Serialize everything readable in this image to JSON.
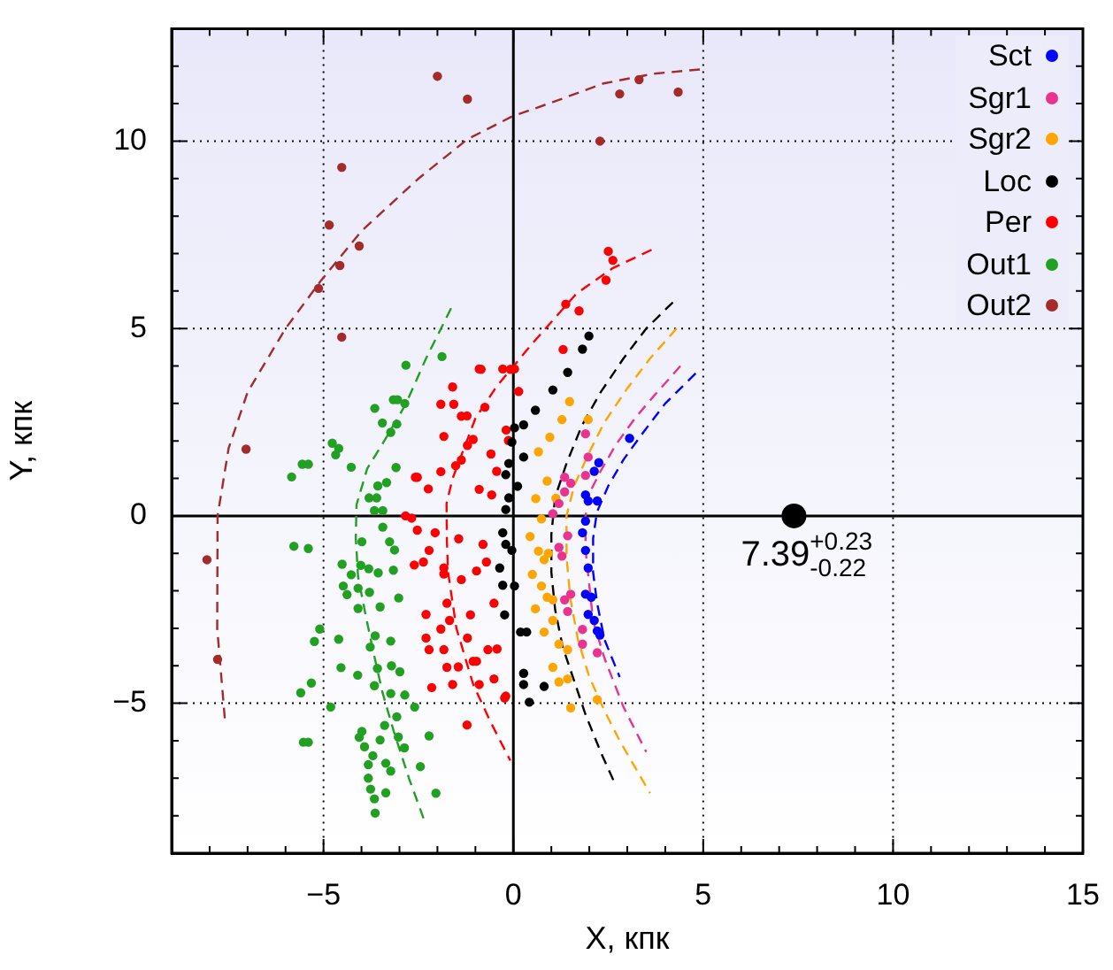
{
  "chart_data": {
    "type": "scatter",
    "xlabel": "X, кпк",
    "ylabel": "Y, кпк",
    "xlim": [
      -9,
      15
    ],
    "ylim": [
      -9,
      13
    ],
    "xticks": [
      {
        "value": -9,
        "label": null
      },
      {
        "value": -8,
        "label": null
      },
      {
        "value": -7,
        "label": null
      },
      {
        "value": -6,
        "label": null
      },
      {
        "value": -5,
        "label": "−5"
      },
      {
        "value": -4,
        "label": null
      },
      {
        "value": -3,
        "label": null
      },
      {
        "value": -2,
        "label": null
      },
      {
        "value": -1,
        "label": null
      },
      0,
      {
        "value": 1,
        "label": null
      },
      {
        "value": 2,
        "label": null
      },
      {
        "value": 3,
        "label": null
      },
      {
        "value": 4,
        "label": null
      },
      5,
      {
        "value": 6,
        "label": null
      },
      {
        "value": 7,
        "label": null
      },
      {
        "value": 8,
        "label": null
      },
      {
        "value": 9,
        "label": null
      },
      10,
      {
        "value": 11,
        "label": null
      },
      {
        "value": 12,
        "label": null
      },
      {
        "value": 13,
        "label": null
      },
      {
        "value": 14,
        "label": null
      },
      15
    ],
    "yticks": [
      {
        "value": -9,
        "label": null
      },
      {
        "value": -8,
        "label": null
      },
      {
        "value": -7,
        "label": null
      },
      {
        "value": -6,
        "label": null
      },
      {
        "value": -5,
        "label": "−5"
      },
      {
        "value": -4,
        "label": null
      },
      {
        "value": -3,
        "label": null
      },
      {
        "value": -2,
        "label": null
      },
      {
        "value": -1,
        "label": null
      },
      0,
      {
        "value": 1,
        "label": null
      },
      {
        "value": 2,
        "label": null
      },
      {
        "value": 3,
        "label": null
      },
      {
        "value": 4,
        "label": null
      },
      5,
      {
        "value": 6,
        "label": null
      },
      {
        "value": 7,
        "label": null
      },
      {
        "value": 8,
        "label": null
      },
      {
        "value": 9,
        "label": null
      },
      10,
      {
        "value": 11,
        "label": null
      },
      {
        "value": 12,
        "label": null
      },
      {
        "value": 13,
        "label": null
      }
    ],
    "grid": true,
    "legend": "top right",
    "marker": "circle",
    "annotations": [
      {
        "text": "7.39$^{+0.23}$$_{-0.22}$",
        "x": 7.39,
        "y": 0
      }
    ],
    "series": [
      {
        "name": "Sct",
        "color": "#0000ff",
        "x": [
          3.06,
          2.25,
          2.13,
          1.9,
          1.97,
          2.21,
          1.9,
          1.82,
          1.9,
          1.97,
          1.9,
          2.05,
          1.97,
          2.13,
          2.28,
          2.21
        ],
        "values": [
          2.07,
          1.42,
          1.19,
          0.56,
          0.4,
          0.4,
          -0.14,
          -0.45,
          -0.92,
          -1.39,
          -2.09,
          -2.17,
          -2.63,
          -2.79,
          -3.18,
          -3.07
        ]
      },
      {
        "name": "Sgr1",
        "color": "#e9348f",
        "x": [
          1.9,
          1.97,
          1.35,
          1.51,
          1.35,
          1.2,
          1.43,
          1.2,
          1.28,
          1.35,
          1.43,
          1.51,
          1.82,
          1.82,
          1.9,
          1.04,
          2.21
        ],
        "values": [
          2.19,
          1.57,
          1.03,
          0.87,
          0.64,
          0.33,
          -0.53,
          -0.84,
          -1.07,
          -2.24,
          -2.55,
          -2.09,
          -3.42,
          -3.03,
          1.08,
          0.06,
          -3.65
        ]
      },
      {
        "name": "Sgr2",
        "color": "#ffa500",
        "x": [
          1.28,
          1.97,
          0.66,
          0.89,
          0.59,
          0.74,
          0.44,
          0.66,
          0.81,
          0.5,
          0.74,
          0.89,
          0.58,
          1.04,
          0.81,
          1.2,
          1.04,
          1.43,
          1.51,
          1.48,
          0.96,
          1.12,
          0.92,
          1.04,
          1.43,
          1.2,
          2.21
        ],
        "values": [
          2.57,
          2.57,
          1.71,
          0.93,
          0.46,
          -0.08,
          -0.55,
          -0.94,
          -1.17,
          -1.56,
          -1.87,
          -2.17,
          -2.48,
          -2.79,
          -3.1,
          -3.42,
          -4.04,
          -4.35,
          -5.12,
          3.05,
          2.1,
          0.47,
          -1.0,
          -2.24,
          -3.57,
          -4.43,
          -4.9
        ]
      },
      {
        "name": "Loc",
        "color": "#000000",
        "x": [
          1.43,
          1.82,
          1.04,
          0.58,
          0.27,
          -0.04,
          0.27,
          -0.2,
          0.11,
          -0.2,
          -0.28,
          -0.04,
          -0.36,
          0.03,
          0.19,
          0.27,
          0.42,
          0.03,
          -0.12,
          -0.12,
          -0.2,
          -0.28,
          -0.23,
          0.27,
          1.99,
          0.35,
          0.81
        ],
        "values": [
          3.83,
          4.45,
          3.36,
          2.82,
          2.43,
          1.97,
          1.57,
          1.1,
          0.79,
          0.17,
          -0.45,
          -0.92,
          -1.39,
          -1.87,
          -3.1,
          -4.2,
          -4.97,
          2.35,
          1.4,
          0.48,
          -0.76,
          -1.85,
          -2.64,
          -4.5,
          4.8,
          -3.1,
          -4.55
        ]
      },
      {
        "name": "Per",
        "color": "#ff0000",
        "x": [
          2.5,
          2.62,
          2.44,
          1.38,
          1.73,
          1.31,
          -0.28,
          0.03,
          0.14,
          -0.19,
          -0.2,
          -0.43,
          -1.91,
          -1.57,
          -1.22,
          -0.9,
          -2.58,
          -2.24,
          -1.91,
          -1.37,
          -1.06,
          -2.84,
          -2.53,
          -2.22,
          -2.61,
          -1.83,
          -1.37,
          -2.3,
          -1.68,
          -2.3,
          -1.83,
          -1.06,
          -2.15,
          -1.45,
          -1.22,
          -0.9,
          -0.85,
          -0.08,
          -1.6,
          -1.37,
          -0.75,
          -1.83,
          -1.21,
          -0.59,
          -2.53,
          -1.52,
          -0.9,
          -2.68,
          -2.06,
          -1.44,
          -2.37,
          -1.83,
          -0.97,
          -1.75,
          -1.13,
          -0.51,
          -1.91,
          -1.21,
          -0.67,
          -2.22,
          -1.75,
          -0.97,
          -0.51,
          -1.6,
          -0.23,
          -0.13,
          -0.44,
          -0.57,
          -0.8,
          -0.71
        ],
        "values": [
          7.06,
          6.82,
          6.29,
          5.65,
          5.47,
          4.44,
          3.92,
          3.92,
          3.32,
          2.29,
          -4.81,
          -3.55,
          2.98,
          2.98,
          2.67,
          3.92,
          1.03,
          0.72,
          1.18,
          1.49,
          2.04,
          0.0,
          -0.38,
          -0.92,
          -1.31,
          -1.39,
          -1.7,
          -2.63,
          -2.79,
          -3.26,
          -3.57,
          -3.88,
          -4.58,
          -4.03,
          -5.58,
          -4.5,
          3.91,
          3.91,
          3.44,
          2.66,
          2.9,
          2.12,
          1.88,
          1.65,
          1.03,
          1.34,
          0.71,
          -0.06,
          -0.45,
          -0.61,
          -1.23,
          -1.55,
          -1.47,
          -2.33,
          -2.64,
          -2.33,
          -3.02,
          -3.26,
          -3.57,
          -3.57,
          -4.04,
          -3.88,
          -4.35,
          -4.5,
          -4.86,
          2.01,
          1.19,
          0.56,
          -0.76,
          -1.23
        ]
      },
      {
        "name": "Out1",
        "color": "#22a022",
        "x": [
          -1.88,
          -2.83,
          -3.16,
          -3.05,
          -2.86,
          -3.65,
          -3.45,
          -3.23,
          -3.07,
          -4.77,
          -4.6,
          -4.68,
          -5.56,
          -5.4,
          -5.84,
          -4.27,
          -3.57,
          -3.34,
          -3.8,
          -3.6,
          -3.66,
          -3.44,
          -3.09,
          -3.44,
          -5.78,
          -5.4,
          -3.26,
          -3.99,
          -4.51,
          -4.02,
          -3.81,
          -4.27,
          -3.56,
          -4.48,
          -4.09,
          -3.79,
          -4.38,
          -3.51,
          -4.09,
          -5.1,
          -5.24,
          -4.6,
          -3.64,
          -3.23,
          -3.77,
          -3.58,
          -3.21,
          -2.99,
          -4.54,
          -4.1,
          -5.6,
          -5.32,
          -4.81,
          -3.66,
          -3.23,
          -2.86,
          -2.6,
          -3.07,
          -3.39,
          -3.99,
          -4.06,
          -3.51,
          -3.03,
          -2.87,
          -2.22,
          -5.53,
          -5.4,
          -3.92,
          -3.7,
          -3.82,
          -3.36,
          -3.23,
          -3.82,
          -3.36,
          -3.76,
          -3.66,
          -3.64,
          -2.45,
          -2.04,
          -3.13,
          -3.16,
          -3.02
        ],
        "values": [
          4.25,
          4.02,
          3.1,
          3.1,
          3.0,
          2.87,
          2.48,
          2.23,
          2.45,
          1.94,
          1.8,
          1.63,
          1.38,
          1.38,
          1.04,
          1.3,
          0.8,
          0.89,
          0.48,
          0.48,
          0.14,
          0.14,
          1.29,
          -0.3,
          -0.81,
          -0.87,
          -0.69,
          -0.69,
          -1.29,
          -1.32,
          -1.41,
          -1.57,
          -1.52,
          -1.87,
          -1.93,
          -2.04,
          -2.1,
          -2.43,
          -2.47,
          -3.02,
          -3.35,
          -3.29,
          -3.2,
          -3.34,
          -3.5,
          -4.07,
          -4.0,
          -4.16,
          -4.05,
          -4.25,
          -4.72,
          -4.46,
          -5.1,
          -4.53,
          -4.74,
          -4.78,
          -5.1,
          -5.36,
          -5.59,
          -5.75,
          -5.91,
          -5.98,
          -5.9,
          -6.19,
          -5.87,
          -6.04,
          -6.04,
          -6.16,
          -6.4,
          -6.64,
          -6.6,
          -6.81,
          -7.0,
          -7.39,
          -7.29,
          -7.55,
          -7.93,
          -6.69,
          -7.4,
          -0.91,
          -1.45,
          -2.19
        ]
      },
      {
        "name": "Out2",
        "color": "#a52a2a",
        "x": [
          -2.0,
          -1.21,
          -4.52,
          -4.85,
          -4.06,
          -4.57,
          -5.13,
          -4.52,
          -7.04,
          -8.07,
          -7.79,
          2.8,
          3.31,
          4.34,
          2.28
        ],
        "values": [
          11.73,
          11.12,
          9.3,
          7.76,
          7.2,
          6.68,
          6.07,
          4.77,
          1.78,
          -1.17,
          -3.83,
          11.26,
          11.64,
          11.31,
          10.0
        ]
      },
      {
        "type": "line",
        "color": "#0000ff",
        "line_style": "dashed",
        "marker": "none",
        "x": [
          4.8,
          4.0,
          3.4,
          2.9,
          2.5,
          2.2,
          2.1,
          2.1,
          2.2,
          2.4,
          2.8
        ],
        "values": [
          3.8,
          3.0,
          2.2,
          1.5,
          0.8,
          0.1,
          -0.6,
          -1.5,
          -2.3,
          -3.3,
          -4.3
        ]
      },
      {
        "type": "line",
        "color": "#e9348f",
        "line_style": "dashed",
        "marker": "none",
        "x": [
          4.4,
          3.7,
          3.2,
          2.7,
          2.3,
          2.0,
          1.9,
          1.9,
          2.1,
          2.4,
          2.9,
          3.5
        ],
        "values": [
          4.0,
          3.2,
          2.6,
          1.9,
          1.2,
          0.6,
          0,
          -0.9,
          -2.8,
          -3.8,
          -5.1,
          -6.3
        ]
      },
      {
        "type": "line",
        "color": "#ffa500",
        "line_style": "dashed",
        "marker": "none",
        "x": [
          4.3,
          3.6,
          3.0,
          2.4,
          2.0,
          1.6,
          1.4,
          1.4,
          1.5,
          1.7,
          2.0,
          2.4,
          2.8,
          3.6
        ],
        "values": [
          5.0,
          4.2,
          3.4,
          2.5,
          1.7,
          0.8,
          0,
          -1.1,
          -2.2,
          -3.3,
          -4.3,
          -5.2,
          -6.0,
          -7.4
        ]
      },
      {
        "type": "line",
        "color": "#000000",
        "line_style": "dashed",
        "marker": "none",
        "x": [
          4.2,
          3.5,
          2.9,
          2.3,
          1.8,
          1.4,
          1.1,
          1.0,
          1.0,
          1.1,
          1.3,
          1.6,
          1.9,
          2.3,
          2.7
        ],
        "values": [
          5.7,
          5.0,
          4.2,
          3.3,
          2.4,
          1.4,
          0.5,
          -0.5,
          -1.5,
          -2.5,
          -3.5,
          -4.4,
          -5.3,
          -6.3,
          -7.2
        ]
      },
      {
        "type": "line",
        "color": "#ff0000",
        "line_style": "dashed",
        "marker": "none",
        "x": [
          3.64,
          2.6,
          1.66,
          0.5,
          -0.45,
          -1.0,
          -1.3,
          -1.6,
          -1.76,
          -1.75,
          -1.72,
          -1.5,
          -1.06,
          -0.6,
          -0.08
        ],
        "values": [
          7.1,
          6.6,
          5.93,
          4.6,
          3.44,
          2.6,
          1.8,
          1.0,
          0.33,
          -0.7,
          -1.5,
          -3.0,
          -4.49,
          -5.5,
          -6.53
        ]
      },
      {
        "type": "line",
        "color": "#22a022",
        "line_style": "dashed",
        "marker": "none",
        "x": [
          -1.64,
          -2.3,
          -2.84,
          -3.4,
          -3.85,
          -4.13,
          -4.15,
          -4.09,
          -3.9,
          -3.7,
          -3.45,
          -3.15,
          -2.75,
          -2.33
        ],
        "values": [
          5.54,
          4.2,
          2.97,
          2.0,
          1.26,
          0.3,
          -0.6,
          -1.62,
          -2.6,
          -3.57,
          -4.7,
          -5.75,
          -7.0,
          -8.17
        ]
      },
      {
        "type": "line",
        "color": "#a52a2a",
        "line_style": "dashed",
        "marker": "none",
        "x": [
          -7.6,
          -7.8,
          -7.79,
          -7.5,
          -7.0,
          -6.0,
          -5.08,
          -4.0,
          -2.5,
          -1.21,
          -0.05,
          1.2,
          2.38,
          3.7,
          5.0
        ],
        "values": [
          -5.4,
          -3.0,
          0,
          1.8,
          3.3,
          5.0,
          6.26,
          7.6,
          9.0,
          10.05,
          10.65,
          11.1,
          11.54,
          11.8,
          11.92
        ]
      },
      {
        "type": "bubble",
        "color": "#000000",
        "x": [
          7.39
        ],
        "values": [
          0
        ],
        "sizes": [
          1
        ]
      }
    ]
  }
}
